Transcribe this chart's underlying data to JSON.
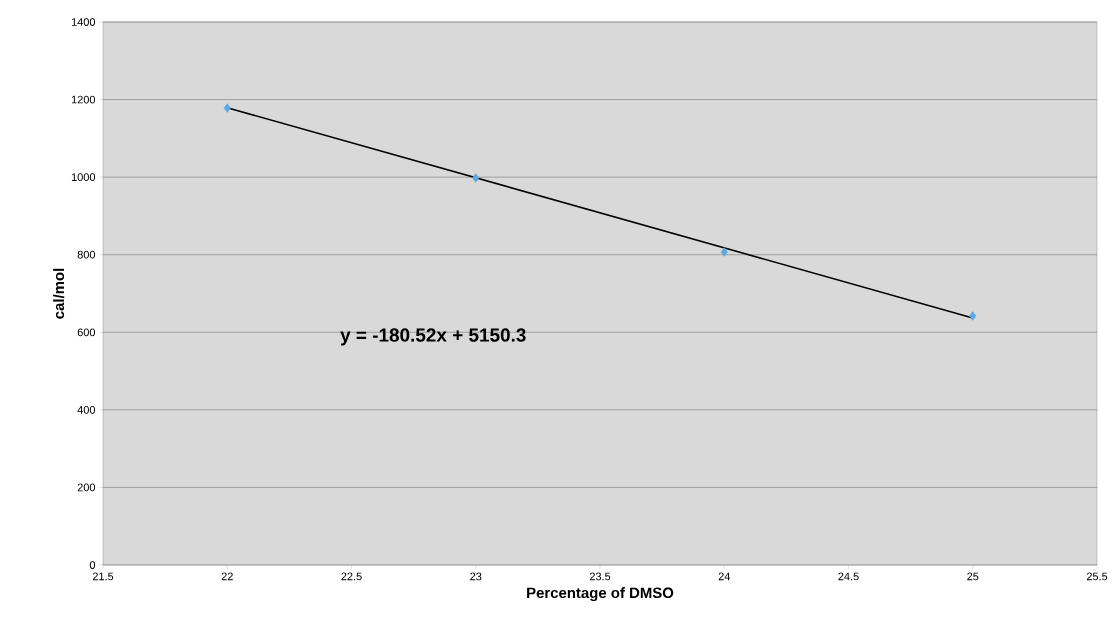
{
  "chart_data": {
    "type": "scatter",
    "xlabel": "Percentage of DMSO",
    "ylabel": "cal/mol",
    "series": [
      {
        "color": "#5ba8e0",
        "marker": "diamond",
        "x": [
          22,
          23,
          24,
          25
        ],
        "values": [
          1178,
          998,
          807,
          642
        ]
      },
      {
        "type": "line",
        "color": "#000000",
        "marker": "none",
        "x": [
          22,
          25
        ],
        "values": [
          1179,
          637
        ]
      }
    ],
    "annotations": [
      "y = -180.52x + 5150.3"
    ],
    "xlim": [
      21.5,
      25.5
    ],
    "xticks": [
      21.5,
      22,
      22.5,
      23,
      23.5,
      24,
      24.5,
      25,
      25.5
    ],
    "ylim": [
      0,
      1400
    ],
    "yticks": [
      0,
      200,
      400,
      600,
      800,
      1000,
      1200,
      1400
    ],
    "grid": "y"
  }
}
